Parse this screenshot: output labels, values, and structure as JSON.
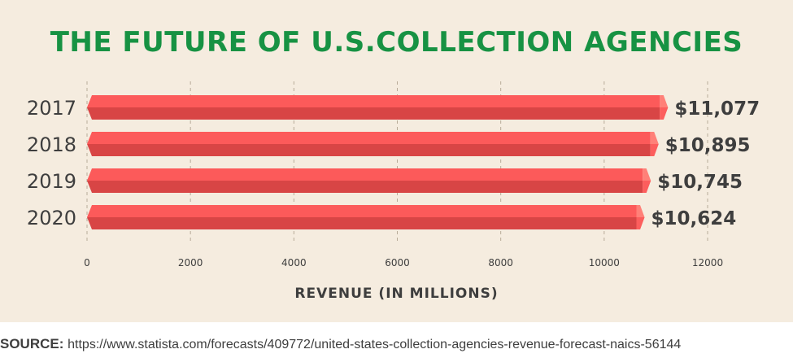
{
  "title": "THE FUTURE OF U.S.COLLECTION AGENCIES",
  "colors": {
    "title": "#179243",
    "background": "#f5ecdf",
    "bar_top": "#fc5a5a",
    "bar_bottom": "#d84545",
    "bar_cap": "#ff8078",
    "text": "#3e3e3e",
    "grid": "#b8ab98"
  },
  "chart_data": {
    "type": "bar",
    "orientation": "horizontal",
    "categories": [
      "2017",
      "2018",
      "2019",
      "2020"
    ],
    "values": [
      11077,
      10895,
      10745,
      10624
    ],
    "value_labels": [
      "$11,077",
      "$10,895",
      "$10,745",
      "$10,624"
    ],
    "xlabel": "REVENUE (IN MILLIONS)",
    "ylabel": "",
    "xlim": [
      0,
      12000
    ],
    "xticks": [
      "0",
      "2000",
      "4000",
      "6000",
      "8000",
      "10000",
      "12000"
    ],
    "grid": "vertical dashed",
    "legend": "none"
  },
  "source": {
    "label": "SOURCE:",
    "url": "https://www.statista.com/forecasts/409772/united-states-collection-agencies-revenue-forecast-naics-56144"
  }
}
